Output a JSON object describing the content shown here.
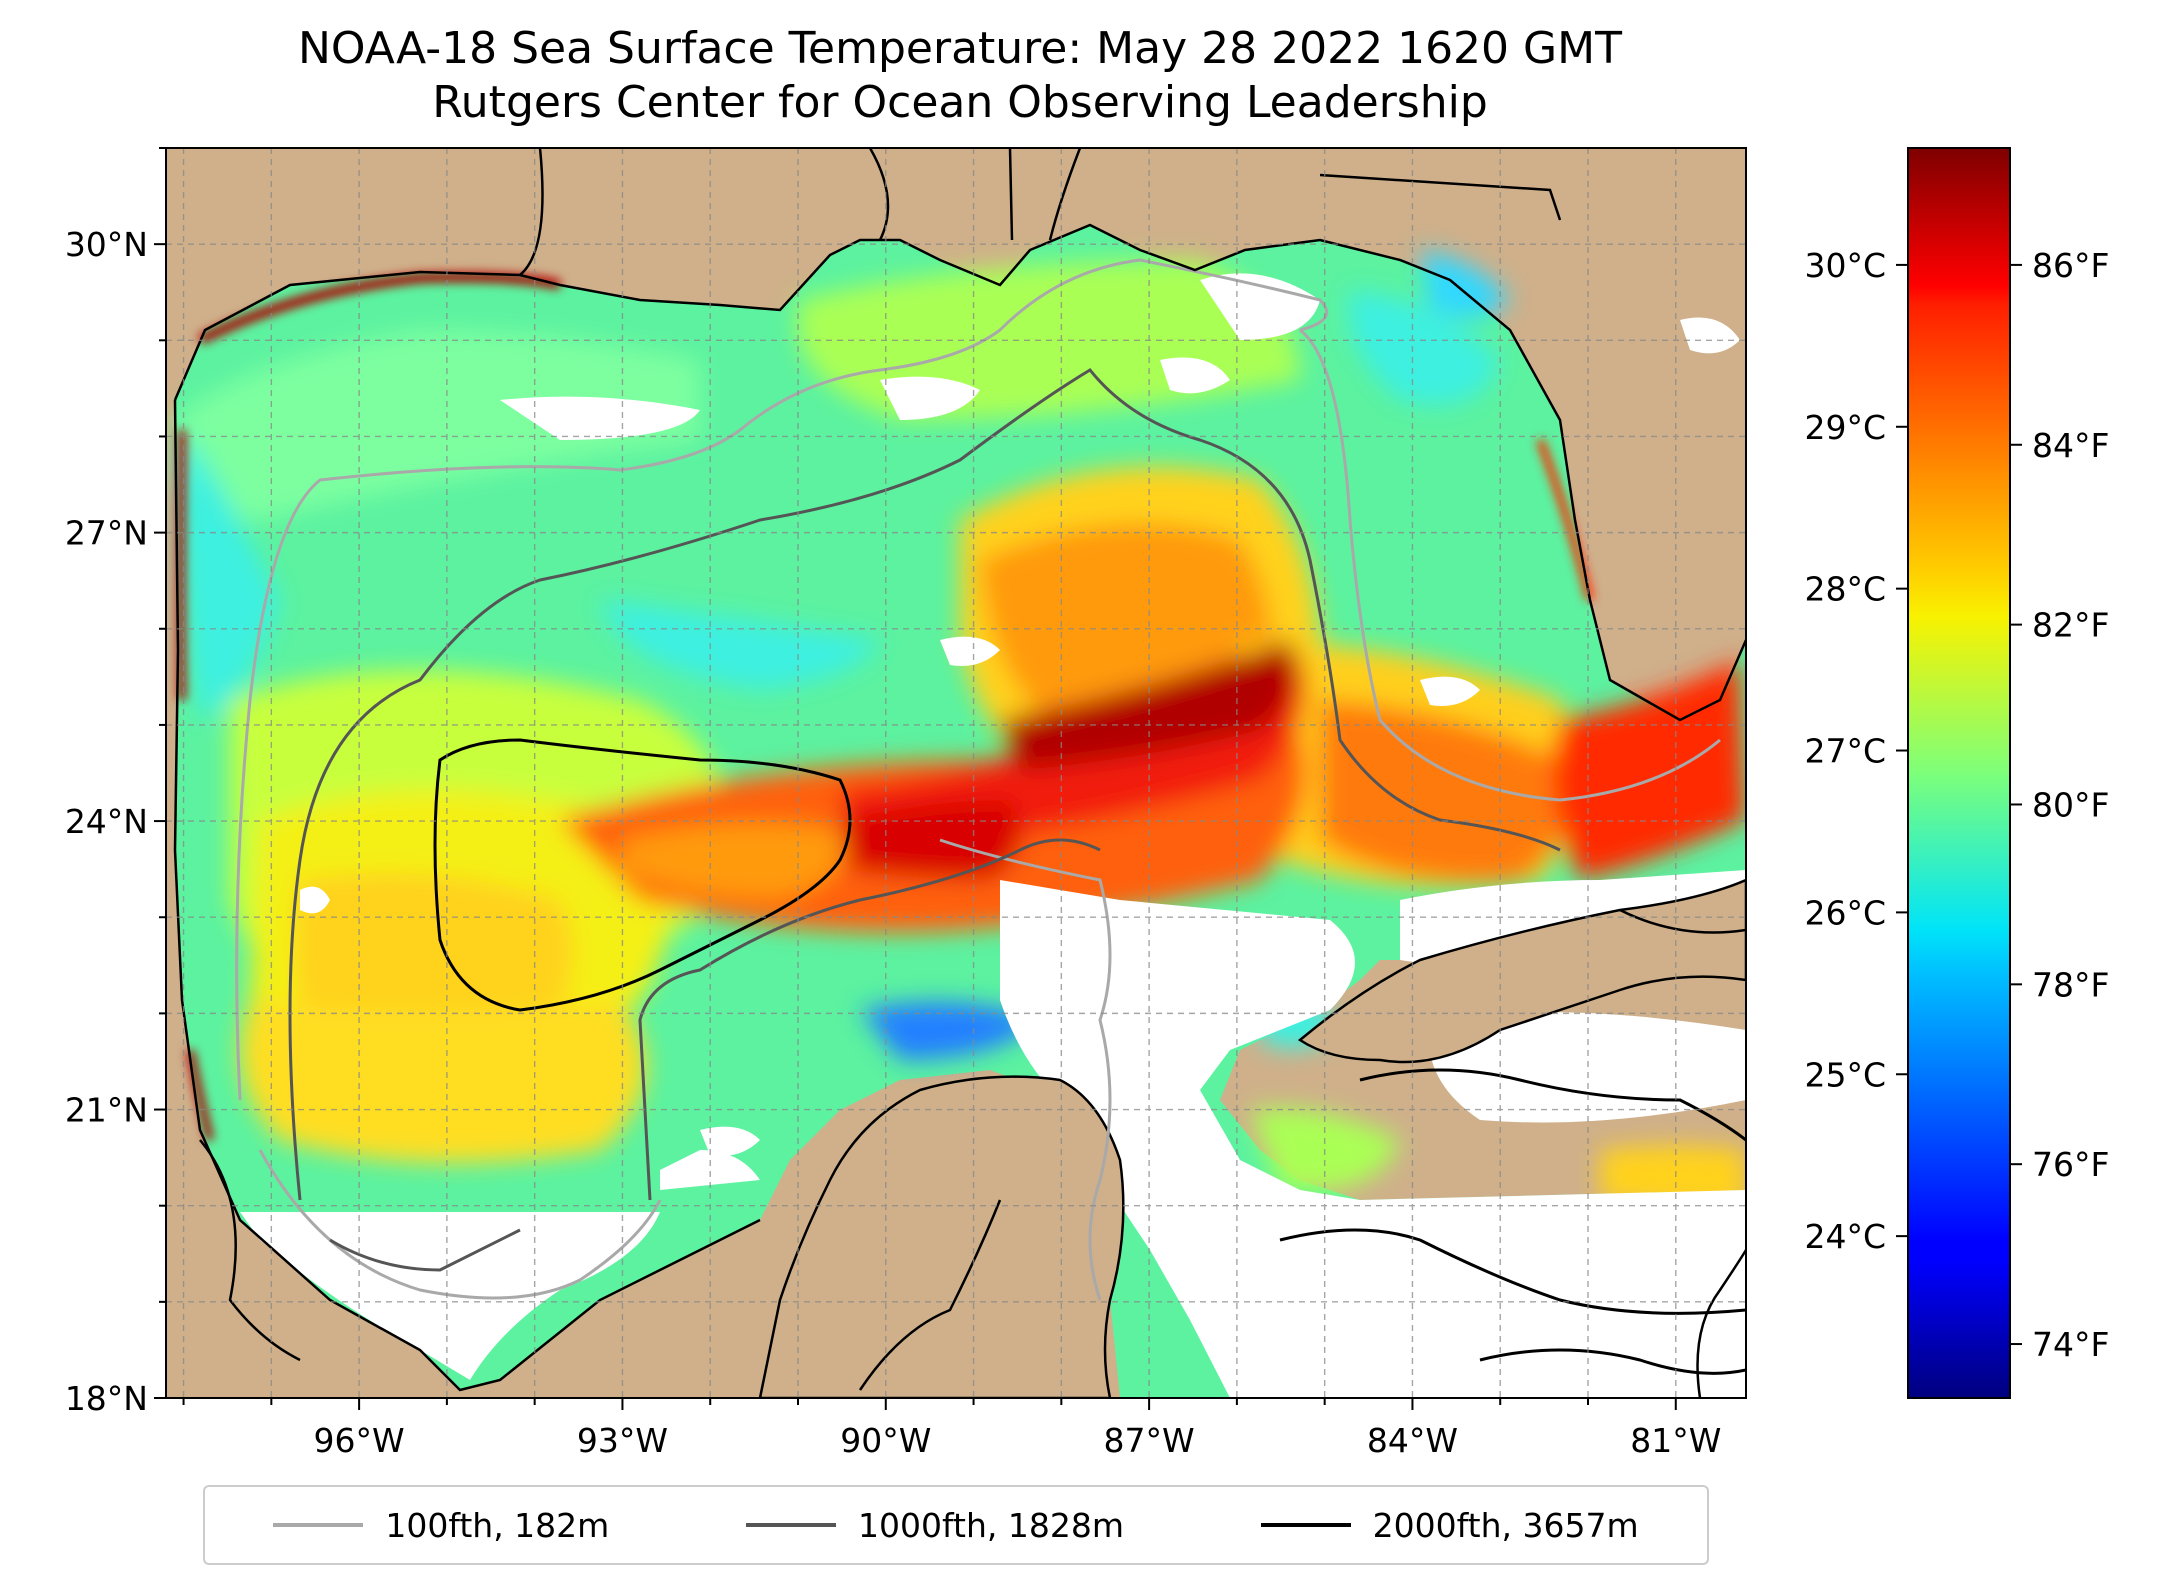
{
  "title": {
    "line1": "NOAA-18 Sea Surface Temperature: May 28 2022 1620 GMT",
    "line2": "Rutgers Center for Ocean Observing Leadership"
  },
  "map": {
    "lon_range": [
      -98.2,
      -80.2
    ],
    "lat_range": [
      18.0,
      31.0
    ],
    "land_color": "#cfb08a",
    "no_data_color": "#ffffff",
    "gridlines": true,
    "lon_ticks": [
      {
        "value": -96,
        "label": "96°W"
      },
      {
        "value": -93,
        "label": "93°W"
      },
      {
        "value": -90,
        "label": "90°W"
      },
      {
        "value": -87,
        "label": "87°W"
      },
      {
        "value": -84,
        "label": "84°W"
      },
      {
        "value": -81,
        "label": "81°W"
      }
    ],
    "lat_ticks": [
      {
        "value": 30,
        "label": "30°N"
      },
      {
        "value": 27,
        "label": "27°N"
      },
      {
        "value": 24,
        "label": "24°N"
      },
      {
        "value": 21,
        "label": "21°N"
      },
      {
        "value": 18,
        "label": "18°N"
      }
    ]
  },
  "colorbar": {
    "colormap": "jet",
    "celsius_ticks": [
      {
        "value": 30,
        "label": "30°C"
      },
      {
        "value": 29,
        "label": "29°C"
      },
      {
        "value": 28,
        "label": "28°C"
      },
      {
        "value": 27,
        "label": "27°C"
      },
      {
        "value": 26,
        "label": "26°C"
      },
      {
        "value": 25,
        "label": "25°C"
      },
      {
        "value": 24,
        "label": "24°C"
      }
    ],
    "fahrenheit_ticks": [
      {
        "value": 86,
        "label": "86°F"
      },
      {
        "value": 84,
        "label": "84°F"
      },
      {
        "value": 82,
        "label": "82°F"
      },
      {
        "value": 80,
        "label": "80°F"
      },
      {
        "value": 78,
        "label": "78°F"
      },
      {
        "value": 76,
        "label": "76°F"
      },
      {
        "value": 74,
        "label": "74°F"
      }
    ],
    "f_range": [
      73.4,
      87.3
    ]
  },
  "legend": {
    "placement": "bottom",
    "items": [
      {
        "label": "100fth, 182m",
        "color": "#a9a9a9"
      },
      {
        "label": "1000fth, 1828m",
        "color": "#555555"
      },
      {
        "label": "2000fth, 3657m",
        "color": "#000000"
      }
    ]
  }
}
